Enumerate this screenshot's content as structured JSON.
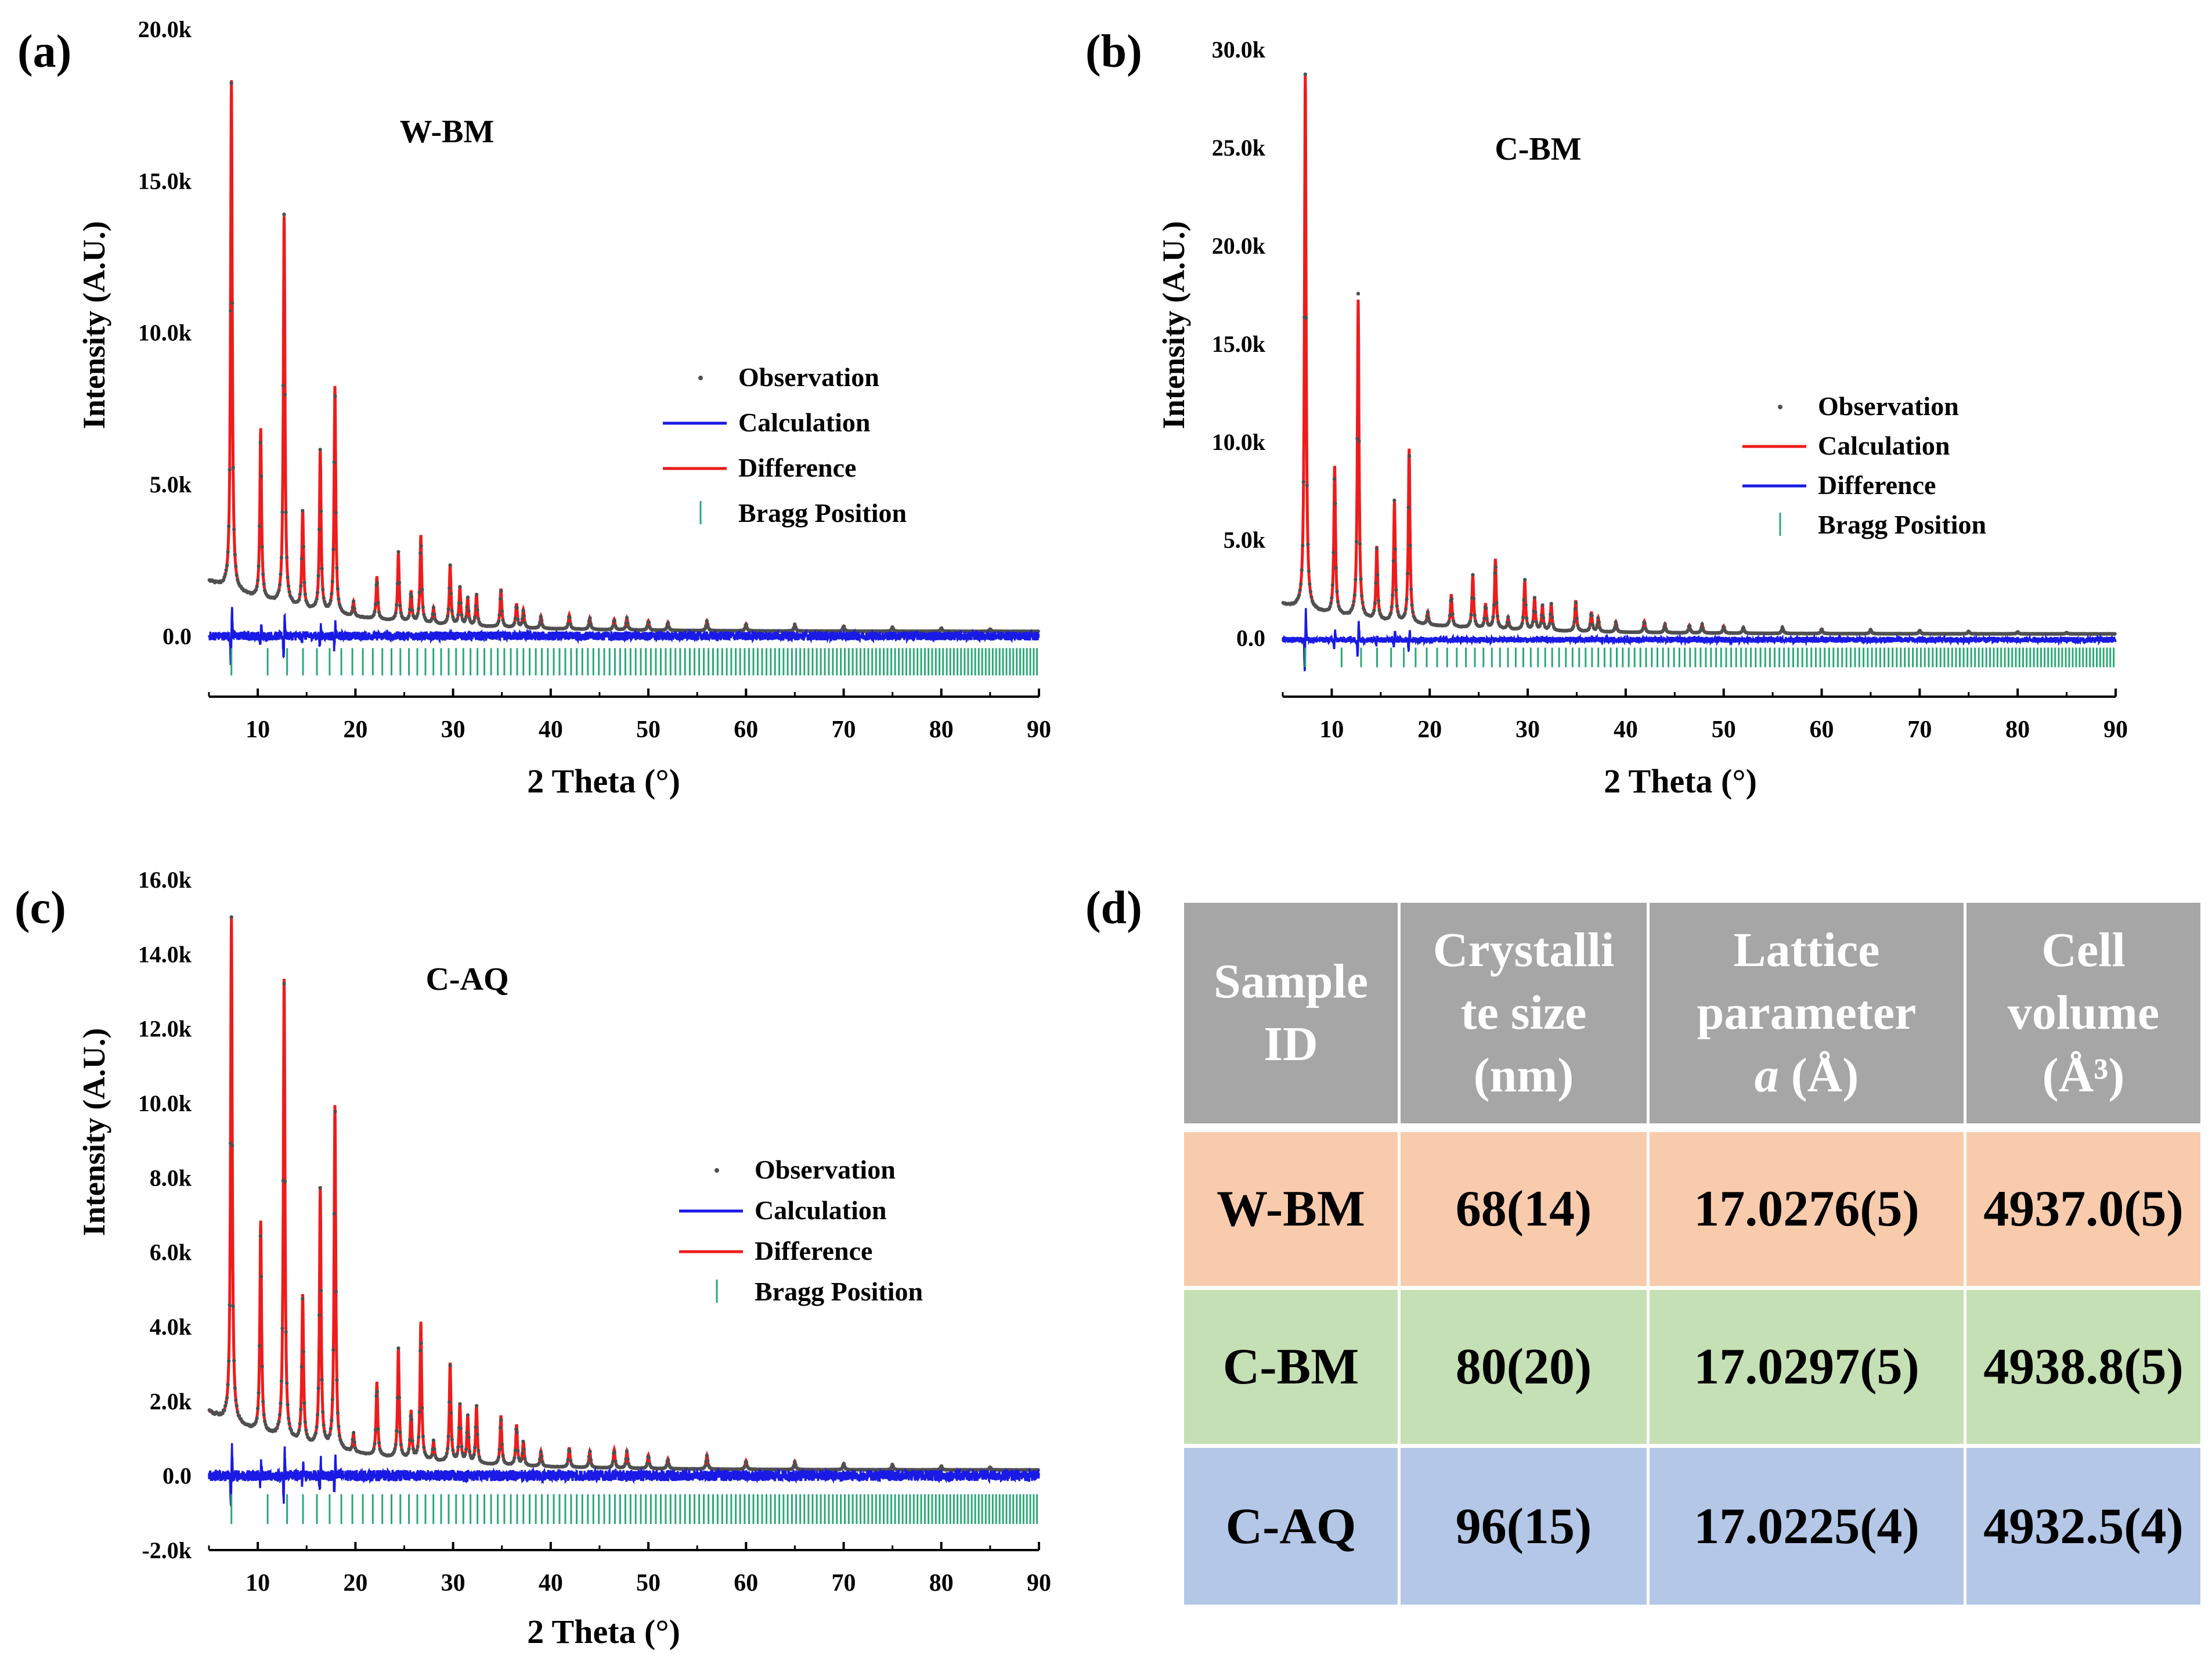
{
  "colors": {
    "observation": "#505050",
    "calculation_line": "#ee1c1c",
    "difference_line": "#1a1ae6",
    "bragg": "#2aa876",
    "axis": "#000000",
    "header_bg": "#a6a6a6",
    "row_wbm": "#f8cbad",
    "row_cbm": "#c5e0b4",
    "row_caq": "#b4c7e7"
  },
  "chart_data": [
    {
      "panel": "(a)",
      "type": "line",
      "title": "W-BM",
      "xlabel": "2 Theta (°)",
      "ylabel": "Intensity (A.U.)",
      "xlim": [
        5,
        90
      ],
      "ylim": [
        -2000,
        20000
      ],
      "xticks": [
        10,
        20,
        30,
        40,
        50,
        60,
        70,
        80,
        90
      ],
      "xtick_labels": [
        "10",
        "20",
        "30",
        "40",
        "50",
        "60",
        "70",
        "80",
        "90"
      ],
      "yticks": [
        0,
        5000,
        10000,
        15000,
        20000
      ],
      "ytick_labels": [
        "0.0",
        "5.0k",
        "10.0k",
        "15.0k",
        "20.0k"
      ],
      "legend": [
        "Observation",
        "Calculation",
        "Difference",
        "Bragg Position"
      ],
      "legend_colors": [
        "#505050",
        "#1a1ae6",
        "#ee1c1c",
        "#2aa876"
      ],
      "legend_placement": "right",
      "background": {
        "start": 1800,
        "end": 150
      },
      "peaks": [
        {
          "x": 7.3,
          "y": 18300
        },
        {
          "x": 10.3,
          "y": 6800
        },
        {
          "x": 12.7,
          "y": 13800
        },
        {
          "x": 14.6,
          "y": 4100
        },
        {
          "x": 16.4,
          "y": 6100
        },
        {
          "x": 17.9,
          "y": 8200
        },
        {
          "x": 19.8,
          "y": 1100
        },
        {
          "x": 22.2,
          "y": 1950
        },
        {
          "x": 24.4,
          "y": 2700
        },
        {
          "x": 25.7,
          "y": 1450
        },
        {
          "x": 26.7,
          "y": 3300
        },
        {
          "x": 28.0,
          "y": 900
        },
        {
          "x": 29.7,
          "y": 2350
        },
        {
          "x": 30.7,
          "y": 1600
        },
        {
          "x": 31.5,
          "y": 1250
        },
        {
          "x": 32.4,
          "y": 1350
        },
        {
          "x": 34.9,
          "y": 1550
        },
        {
          "x": 36.5,
          "y": 1050
        },
        {
          "x": 37.2,
          "y": 850
        },
        {
          "x": 39.0,
          "y": 650
        },
        {
          "x": 41.9,
          "y": 700
        },
        {
          "x": 44.0,
          "y": 600
        },
        {
          "x": 46.5,
          "y": 550
        },
        {
          "x": 47.8,
          "y": 600
        },
        {
          "x": 50.0,
          "y": 500
        },
        {
          "x": 52.0,
          "y": 450
        },
        {
          "x": 56.0,
          "y": 500
        },
        {
          "x": 60.0,
          "y": 400
        },
        {
          "x": 65.0,
          "y": 380
        },
        {
          "x": 70.0,
          "y": 330
        },
        {
          "x": 75.0,
          "y": 300
        },
        {
          "x": 80.0,
          "y": 260
        },
        {
          "x": 85.0,
          "y": 230
        }
      ],
      "difference_offset": 0,
      "bragg_y": [
        -400,
        -1300
      ],
      "bragg_positions": {
        "start": 7.3,
        "end": 89.8,
        "count": 150
      }
    },
    {
      "panel": "(b)",
      "type": "line",
      "title": "C-BM",
      "xlabel": "2 Theta (°)",
      "ylabel": "Intensity (A.U.)",
      "xlim": [
        5,
        90
      ],
      "ylim": [
        -3000,
        30000
      ],
      "xticks": [
        10,
        20,
        30,
        40,
        50,
        60,
        70,
        80,
        90
      ],
      "xtick_labels": [
        "10",
        "20",
        "30",
        "40",
        "50",
        "60",
        "70",
        "80",
        "90"
      ],
      "yticks": [
        0,
        5000,
        10000,
        15000,
        20000,
        25000,
        30000
      ],
      "ytick_labels": [
        "0.0",
        "5.0k",
        "10.0k",
        "15.0k",
        "20.0k",
        "25.0k",
        "30.0k"
      ],
      "legend": [
        "Observation",
        "Calculation",
        "Difference",
        "Bragg Position"
      ],
      "legend_colors": [
        "#505050",
        "#ee1c1c",
        "#1a1ae6",
        "#2aa876"
      ],
      "legend_placement": "right",
      "background": {
        "start": 1700,
        "end": 200
      },
      "peaks": [
        {
          "x": 7.3,
          "y": 28700
        },
        {
          "x": 10.3,
          "y": 8700
        },
        {
          "x": 12.7,
          "y": 17200
        },
        {
          "x": 14.6,
          "y": 4600
        },
        {
          "x": 16.4,
          "y": 6900
        },
        {
          "x": 17.9,
          "y": 9600
        },
        {
          "x": 19.8,
          "y": 1300
        },
        {
          "x": 22.2,
          "y": 2200
        },
        {
          "x": 24.4,
          "y": 3200
        },
        {
          "x": 25.7,
          "y": 1700
        },
        {
          "x": 26.7,
          "y": 4000
        },
        {
          "x": 28.0,
          "y": 1000
        },
        {
          "x": 29.7,
          "y": 2900
        },
        {
          "x": 30.7,
          "y": 2000
        },
        {
          "x": 31.5,
          "y": 1600
        },
        {
          "x": 32.4,
          "y": 1700
        },
        {
          "x": 34.9,
          "y": 1900
        },
        {
          "x": 36.5,
          "y": 1300
        },
        {
          "x": 37.2,
          "y": 1000
        },
        {
          "x": 39.0,
          "y": 800
        },
        {
          "x": 41.9,
          "y": 850
        },
        {
          "x": 44.0,
          "y": 700
        },
        {
          "x": 46.5,
          "y": 650
        },
        {
          "x": 47.8,
          "y": 700
        },
        {
          "x": 50.0,
          "y": 600
        },
        {
          "x": 52.0,
          "y": 550
        },
        {
          "x": 56.0,
          "y": 550
        },
        {
          "x": 60.0,
          "y": 450
        },
        {
          "x": 65.0,
          "y": 420
        },
        {
          "x": 70.0,
          "y": 380
        },
        {
          "x": 75.0,
          "y": 340
        },
        {
          "x": 80.0,
          "y": 300
        },
        {
          "x": 85.0,
          "y": 270
        }
      ],
      "difference_offset": -100,
      "bragg_y": [
        -500,
        -1500
      ],
      "bragg_positions": {
        "start": 7.3,
        "end": 89.8,
        "count": 150
      }
    },
    {
      "panel": "(c)",
      "type": "line",
      "title": "C-AQ",
      "xlabel": "2 Theta (°)",
      "ylabel": "Intensity (A.U.)",
      "xlim": [
        5,
        90
      ],
      "ylim": [
        -2000,
        16000
      ],
      "xticks": [
        10,
        20,
        30,
        40,
        50,
        60,
        70,
        80,
        90
      ],
      "xtick_labels": [
        "10",
        "20",
        "30",
        "40",
        "50",
        "60",
        "70",
        "80",
        "90"
      ],
      "yticks": [
        -2000,
        0,
        2000,
        4000,
        6000,
        8000,
        10000,
        12000,
        14000,
        16000
      ],
      "ytick_labels": [
        "-2.0k",
        "0.0",
        "2.0k",
        "4.0k",
        "6.0k",
        "8.0k",
        "10.0k",
        "12.0k",
        "14.0k",
        "16.0k"
      ],
      "legend": [
        "Observation",
        "Calculation",
        "Difference",
        "Bragg Position"
      ],
      "legend_colors": [
        "#505050",
        "#1a1ae6",
        "#ee1c1c",
        "#2aa876"
      ],
      "legend_placement": "right",
      "background": {
        "start": 1700,
        "end": 150
      },
      "peaks": [
        {
          "x": 7.3,
          "y": 15000
        },
        {
          "x": 10.3,
          "y": 6800
        },
        {
          "x": 12.7,
          "y": 13300
        },
        {
          "x": 14.6,
          "y": 4800
        },
        {
          "x": 16.4,
          "y": 7700
        },
        {
          "x": 17.9,
          "y": 9900
        },
        {
          "x": 19.8,
          "y": 1100
        },
        {
          "x": 22.2,
          "y": 2500
        },
        {
          "x": 24.4,
          "y": 3400
        },
        {
          "x": 25.7,
          "y": 1700
        },
        {
          "x": 26.7,
          "y": 4100
        },
        {
          "x": 28.0,
          "y": 900
        },
        {
          "x": 29.7,
          "y": 3000
        },
        {
          "x": 30.7,
          "y": 1900
        },
        {
          "x": 31.5,
          "y": 1600
        },
        {
          "x": 32.4,
          "y": 1850
        },
        {
          "x": 34.9,
          "y": 1600
        },
        {
          "x": 36.5,
          "y": 1350
        },
        {
          "x": 37.2,
          "y": 900
        },
        {
          "x": 39.0,
          "y": 650
        },
        {
          "x": 41.9,
          "y": 750
        },
        {
          "x": 44.0,
          "y": 650
        },
        {
          "x": 46.5,
          "y": 700
        },
        {
          "x": 47.8,
          "y": 650
        },
        {
          "x": 50.0,
          "y": 550
        },
        {
          "x": 52.0,
          "y": 450
        },
        {
          "x": 56.0,
          "y": 550
        },
        {
          "x": 60.0,
          "y": 400
        },
        {
          "x": 65.0,
          "y": 380
        },
        {
          "x": 70.0,
          "y": 330
        },
        {
          "x": 75.0,
          "y": 300
        },
        {
          "x": 80.0,
          "y": 260
        },
        {
          "x": 85.0,
          "y": 230
        }
      ],
      "difference_offset": 0,
      "bragg_y": [
        -500,
        -1300
      ],
      "bragg_positions": {
        "start": 7.3,
        "end": 89.8,
        "count": 150
      }
    },
    {
      "panel": "(d)",
      "type": "table",
      "headers": [
        "Sample ID",
        "Crystallite size (nm)",
        "Lattice parameter a (Å)",
        "Cell volume (Å³)"
      ],
      "rows": [
        [
          "W-BM",
          "68(14)",
          "17.0276(5)",
          "4937.0(5)"
        ],
        [
          "C-BM",
          "80(20)",
          "17.0297(5)",
          "4938.8(5)"
        ],
        [
          "C-AQ",
          "96(15)",
          "17.0225(4)",
          "4932.5(4)"
        ]
      ]
    }
  ],
  "table": {
    "header_lines": [
      [
        "Sample",
        "ID"
      ],
      [
        "Crystalli",
        "te size",
        "(nm)"
      ],
      [
        "Lattice",
        "parameter",
        "a (Å)"
      ],
      [
        "Cell",
        "volume",
        "(Å³)"
      ]
    ],
    "rows": [
      [
        "W-BM",
        "68(14)",
        "17.0276(5)",
        "4937.0(5)"
      ],
      [
        "C-BM",
        "80(20)",
        "17.0297(5)",
        "4938.8(5)"
      ],
      [
        "C-AQ",
        "96(15)",
        "17.0225(4)",
        "4932.5(4)"
      ]
    ]
  }
}
